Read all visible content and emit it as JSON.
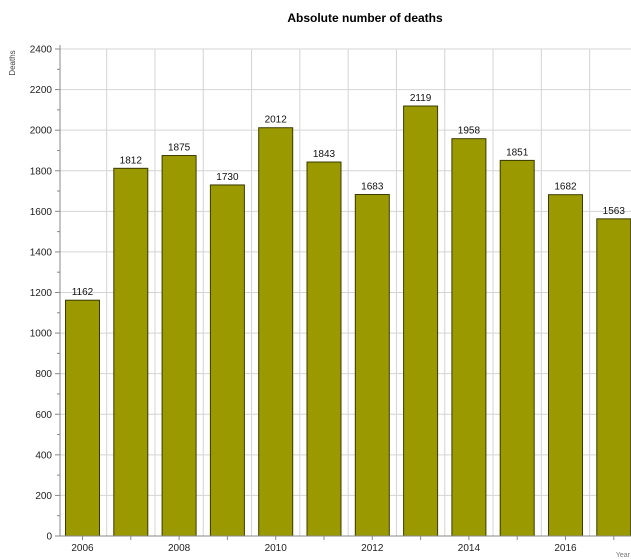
{
  "chart_data": {
    "type": "bar",
    "title": "Absolute number of deaths",
    "ylabel": "Deaths",
    "xlabel": "Year",
    "categories": [
      "2006",
      "2007",
      "2008",
      "2009",
      "2010",
      "2011",
      "2012",
      "2013",
      "2014",
      "2015",
      "2016",
      "2017"
    ],
    "values": [
      1162,
      1812,
      1875,
      1730,
      2012,
      1843,
      1683,
      2119,
      1958,
      1851,
      1682,
      1563
    ],
    "data_labels": [
      "1162",
      "1812",
      "1875",
      "1730",
      "2012",
      "1843",
      "1683",
      "2119",
      "1958",
      "1851",
      "1682",
      "1563"
    ],
    "x_tick_labels": [
      "2006",
      "2008",
      "2010",
      "2012",
      "2014",
      "2016"
    ],
    "y_ticks": [
      0,
      200,
      400,
      600,
      800,
      1000,
      1200,
      1400,
      1600,
      1800,
      2000,
      2200,
      2400
    ],
    "ylim": [
      0,
      2400
    ],
    "grid": true,
    "bar_color": "#9a9a00",
    "bar_stroke": "#3a3a00",
    "grid_color": "#d4d4d4",
    "axis_color": "#888888"
  }
}
